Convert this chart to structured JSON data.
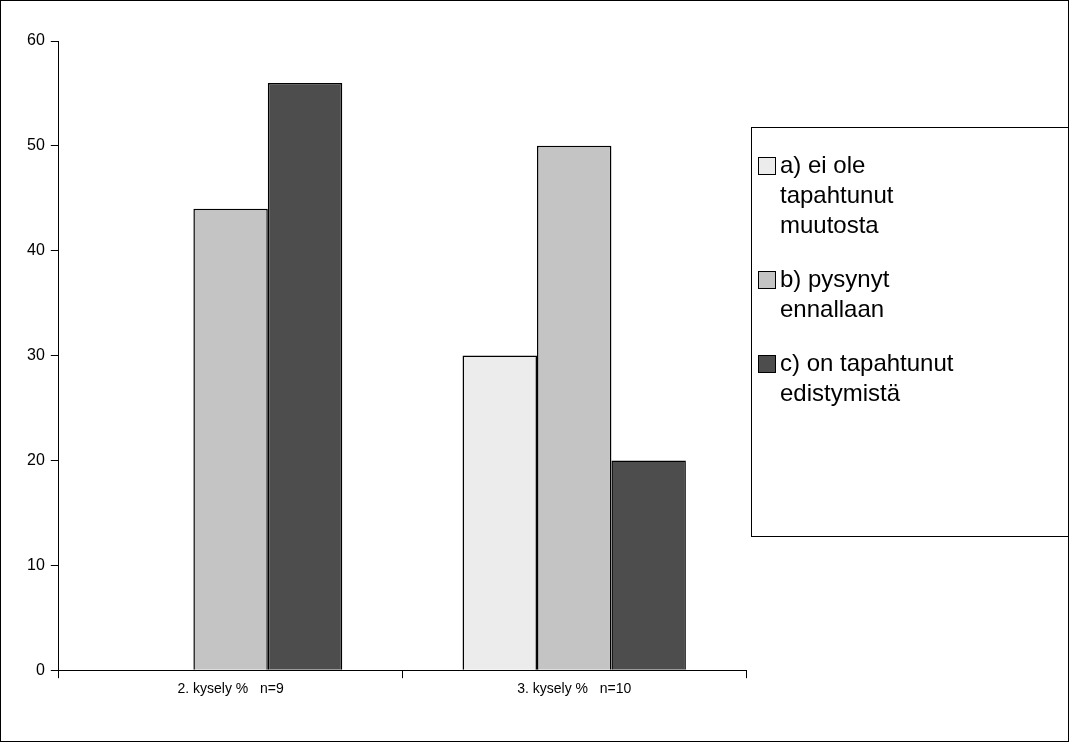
{
  "chart_data": {
    "type": "bar",
    "categories": [
      "2. kysely %   n=9",
      "3. kysely %   n=10"
    ],
    "series": [
      {
        "name": "a) ei ole tapahtunut muutosta",
        "color": "#ececec",
        "values": [
          0,
          30
        ]
      },
      {
        "name": "b) pysynyt ennallaan",
        "color": "#c4c4c4",
        "values": [
          44,
          50
        ]
      },
      {
        "name": "c) on tapahtunut edistymistä",
        "color": "#4d4d4d",
        "values": [
          56,
          20
        ]
      }
    ],
    "ylim": [
      0,
      60
    ],
    "yticks": [
      0,
      10,
      20,
      30,
      40,
      50,
      60
    ],
    "grid": false,
    "legend": "right"
  }
}
